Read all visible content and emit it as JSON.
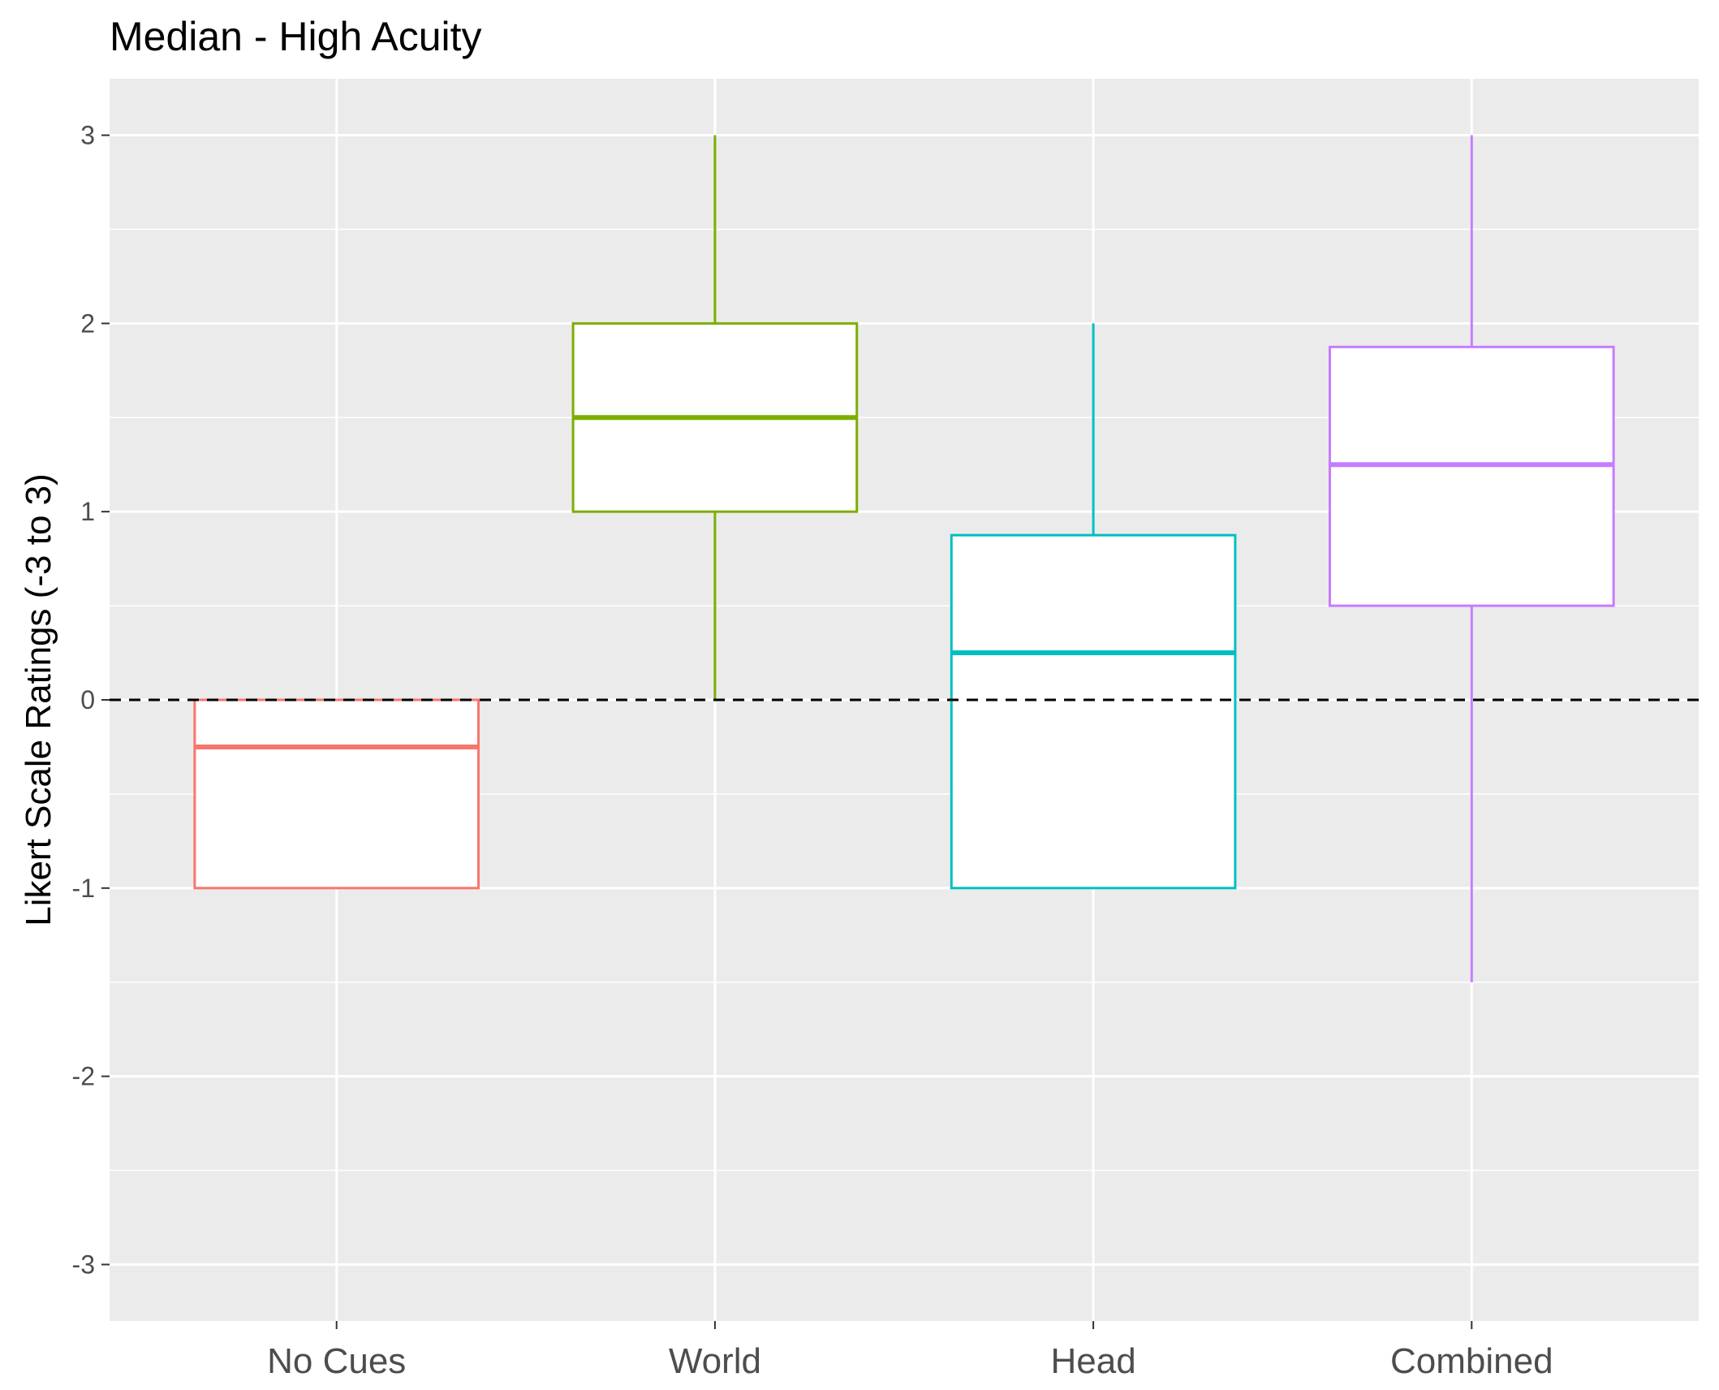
{
  "chart_data": {
    "type": "boxplot",
    "title": "Median - High Acuity",
    "xlabel": "",
    "ylabel": "Likert Scale Ratings (-3 to 3)",
    "ylim": [
      -3.3,
      3.3
    ],
    "yticks": [
      -3,
      -2,
      -1,
      0,
      1,
      2,
      3
    ],
    "categories": [
      "No Cues",
      "World",
      "Head",
      "Combined"
    ],
    "colors": [
      "#F8766D",
      "#7CAE00",
      "#00BFC4",
      "#C77CFF"
    ],
    "reference_line": {
      "y": 0,
      "style": "dashed",
      "color": "#000000"
    },
    "grid": true,
    "legend": "none",
    "boxes": [
      {
        "category": "No Cues",
        "lower_whisker": -1.0,
        "q1": -1.0,
        "median": -0.25,
        "q3": 0.0,
        "upper_whisker": 0.0
      },
      {
        "category": "World",
        "lower_whisker": 0.0,
        "q1": 1.0,
        "median": 1.5,
        "q3": 2.0,
        "upper_whisker": 3.0
      },
      {
        "category": "Head",
        "lower_whisker": -1.0,
        "q1": -1.0,
        "median": 0.25,
        "q3": 0.875,
        "upper_whisker": 2.0
      },
      {
        "category": "Combined",
        "lower_whisker": -1.5,
        "q1": 0.5,
        "median": 1.25,
        "q3": 1.875,
        "upper_whisker": 3.0
      }
    ]
  }
}
